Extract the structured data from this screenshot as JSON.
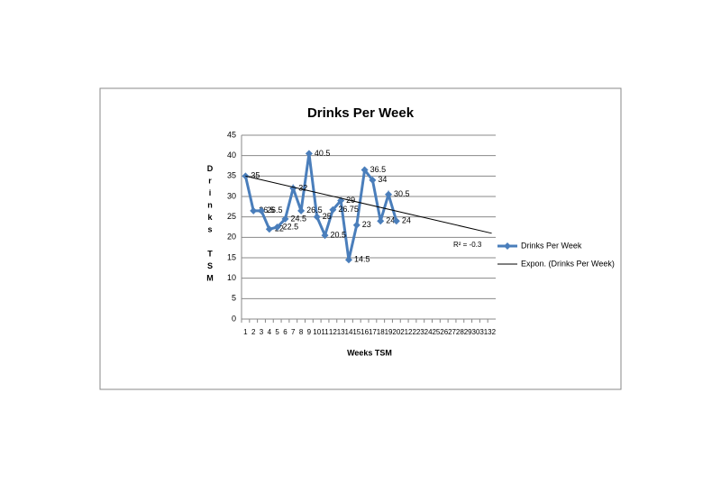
{
  "chart_data": {
    "type": "line",
    "title": "Drinks Per Week",
    "x_label": "Weeks TSM",
    "y_label": "Drinks TSM",
    "categories": [
      1,
      2,
      3,
      4,
      5,
      6,
      7,
      8,
      9,
      10,
      11,
      12,
      13,
      14,
      15,
      16,
      17,
      18,
      19,
      20,
      21,
      22,
      23,
      24,
      25,
      26,
      27,
      28,
      29,
      30,
      31,
      32
    ],
    "series": [
      {
        "name": "Drinks Per Week",
        "color": "#4a7ebb",
        "values": [
          35,
          26.5,
          26.5,
          22,
          22.5,
          24.5,
          32,
          26.5,
          40.5,
          25,
          20.5,
          26.75,
          29,
          14.5,
          23,
          36.5,
          34,
          24,
          30.5,
          24,
          null,
          null,
          null,
          null,
          null,
          null,
          null,
          null,
          null,
          null,
          null,
          null
        ]
      }
    ],
    "trendline": {
      "name": "Expon. (Drinks Per Week)",
      "color": "#000000",
      "x": [
        1,
        32
      ],
      "values": [
        35,
        21
      ],
      "label": "R² = -0.3"
    },
    "ylim": [
      0,
      45
    ],
    "yticks": [
      0,
      5,
      10,
      15,
      20,
      25,
      30,
      35,
      40,
      45
    ],
    "grid": true,
    "legend": "right"
  }
}
